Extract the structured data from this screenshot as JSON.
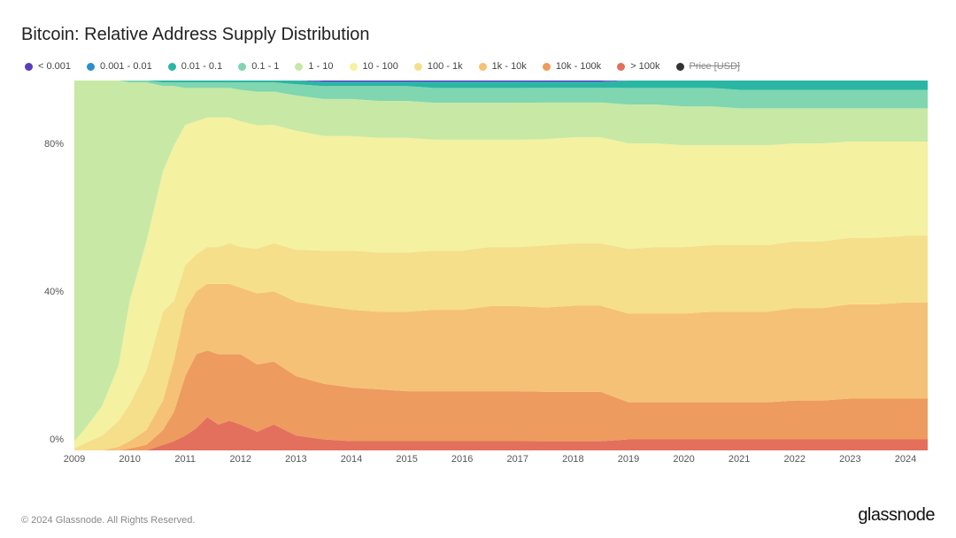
{
  "title": "Bitcoin: Relative Address Supply Distribution",
  "copyright": "© 2024 Glassnode. All Rights Reserved.",
  "brand": "glassnode",
  "legend": [
    {
      "label": "< 0.001",
      "color": "#5b3db8"
    },
    {
      "label": "0.001 - 0.01",
      "color": "#2f8fc9"
    },
    {
      "label": "0.01 - 0.1",
      "color": "#2bb6a3"
    },
    {
      "label": "0.1 - 1",
      "color": "#7fd6b0"
    },
    {
      "label": "1 - 10",
      "color": "#c7e9a5"
    },
    {
      "label": "10 - 100",
      "color": "#f4f1a1"
    },
    {
      "label": "100 - 1k",
      "color": "#f5df8a"
    },
    {
      "label": "1k - 10k",
      "color": "#f5c176"
    },
    {
      "label": "10k - 100k",
      "color": "#ee9b5f"
    },
    {
      "label": "> 100k",
      "color": "#e3705d"
    },
    {
      "label": "Price [USD]",
      "color": "#333333",
      "disabled": true
    }
  ],
  "chart": {
    "type": "stacked-area",
    "ylim": [
      0,
      100
    ],
    "yticks": [
      0,
      40,
      80
    ],
    "ytick_format": "%",
    "background_color": "#ffffff",
    "title_fontsize": 20,
    "label_fontsize": 11,
    "plot_aspect": "1012x418",
    "x_years": [
      2009,
      2010,
      2011,
      2012,
      2013,
      2014,
      2015,
      2016,
      2017,
      2018,
      2019,
      2020,
      2021,
      2022,
      2023,
      2024
    ],
    "x_range": [
      2009.0,
      2024.4
    ],
    "series_order_bottom_to_top": [
      "gt100k",
      "10k_100k",
      "1k_10k",
      "100_1k",
      "10_100",
      "1_10",
      "0.1_1",
      "0.01_0.1",
      "0.001_0.01",
      "lt0.001"
    ],
    "series_colors": {
      "gt100k": "#e3705d",
      "10k_100k": "#ee9b5f",
      "1k_10k": "#f5c176",
      "100_1k": "#f5df8a",
      "10_100": "#f4f1a1",
      "1_10": "#c7e9a5",
      "0.1_1": "#7fd6b0",
      "0.01_0.1": "#2bb6a3",
      "0.001_0.01": "#2f8fc9",
      "lt0.001": "#5b3db8"
    },
    "samples_x": [
      2009.0,
      2009.2,
      2009.5,
      2009.8,
      2010.0,
      2010.3,
      2010.6,
      2010.8,
      2011.0,
      2011.2,
      2011.4,
      2011.6,
      2011.8,
      2012.0,
      2012.3,
      2012.6,
      2013.0,
      2013.5,
      2014.0,
      2014.5,
      2015.0,
      2015.5,
      2016.0,
      2016.5,
      2017.0,
      2017.5,
      2018.0,
      2018.5,
      2019.0,
      2019.5,
      2020.0,
      2020.5,
      2021.0,
      2021.5,
      2022.0,
      2022.5,
      2023.0,
      2023.5,
      2024.0,
      2024.4
    ],
    "stacked_values": {
      "gt100k": [
        0.0,
        0.0,
        0.0,
        0.0,
        0.0,
        0.0,
        1.5,
        2.5,
        4.0,
        6.0,
        9.0,
        7.0,
        8.0,
        7.0,
        5.0,
        7.0,
        4.0,
        3.0,
        2.5,
        2.5,
        2.5,
        2.5,
        2.5,
        2.5,
        2.5,
        2.5,
        2.5,
        2.5,
        3.0,
        3.0,
        3.0,
        3.0,
        3.0,
        3.0,
        3.0,
        3.0,
        3.0,
        3.0,
        3.0,
        3.0
      ],
      "10k_100k": [
        0.0,
        0.0,
        0.0,
        0.0,
        0.5,
        1.5,
        4.0,
        8.0,
        16.0,
        20.0,
        18.0,
        19.0,
        18.0,
        19.0,
        18.0,
        17.0,
        16.0,
        15.0,
        14.5,
        14.0,
        13.5,
        13.5,
        13.5,
        13.5,
        13.5,
        13.5,
        13.5,
        13.5,
        10.0,
        10.0,
        10.0,
        10.0,
        10.0,
        10.0,
        10.5,
        10.5,
        11.0,
        11.0,
        11.0,
        11.0
      ],
      "1k_10k": [
        0.0,
        0.0,
        0.0,
        1.0,
        2.0,
        4.0,
        8.0,
        14.0,
        18.0,
        17.0,
        18.0,
        19.0,
        19.0,
        18.0,
        19.0,
        19.0,
        20.0,
        21.0,
        21.0,
        21.0,
        21.5,
        22.0,
        22.0,
        23.0,
        23.0,
        23.0,
        23.5,
        23.5,
        24.0,
        24.0,
        24.0,
        24.5,
        24.5,
        24.5,
        25.0,
        25.0,
        25.5,
        25.5,
        26.0,
        26.0
      ],
      "100_1k": [
        0.5,
        2.0,
        4.0,
        7.0,
        10.0,
        16.0,
        24.0,
        16.0,
        12.0,
        10.0,
        10.0,
        10.0,
        11.0,
        11.0,
        12.0,
        13.0,
        14.0,
        15.0,
        16.0,
        16.0,
        16.0,
        16.0,
        16.0,
        16.0,
        16.0,
        17.0,
        17.0,
        17.0,
        17.5,
        18.0,
        18.0,
        18.0,
        18.0,
        18.0,
        18.0,
        18.0,
        18.0,
        18.0,
        18.0,
        18.0
      ],
      "10_100": [
        2.0,
        4.0,
        8.0,
        15.0,
        28.0,
        35.0,
        38.0,
        42.0,
        38.0,
        36.0,
        35.0,
        35.0,
        34.0,
        34.0,
        33.0,
        32.0,
        32.0,
        31.0,
        31.0,
        31.0,
        31.0,
        30.0,
        30.0,
        29.0,
        29.0,
        29.0,
        29.0,
        29.0,
        28.5,
        28.0,
        27.5,
        27.0,
        27.0,
        27.0,
        26.5,
        26.5,
        26.0,
        26.0,
        25.5,
        25.5
      ],
      "1_10": [
        97.5,
        94.0,
        88.0,
        77.0,
        59.0,
        43.0,
        23.0,
        16.0,
        10.0,
        9.0,
        8.0,
        8.0,
        8.0,
        8.5,
        9.0,
        9.0,
        9.5,
        10.0,
        10.0,
        10.0,
        10.0,
        10.0,
        10.0,
        10.0,
        10.0,
        10.0,
        9.5,
        9.5,
        10.5,
        10.5,
        10.5,
        10.5,
        10.0,
        10.0,
        9.5,
        9.5,
        9.0,
        9.0,
        9.0,
        9.0
      ],
      "0.1_1": [
        0.0,
        0.0,
        0.0,
        0.0,
        0.5,
        0.5,
        1.0,
        1.0,
        1.5,
        1.5,
        1.5,
        1.5,
        1.5,
        2.0,
        2.5,
        2.5,
        3.0,
        3.5,
        3.5,
        4.0,
        4.0,
        4.0,
        4.0,
        4.0,
        4.0,
        4.0,
        4.0,
        4.0,
        4.5,
        4.5,
        5.0,
        5.0,
        5.0,
        5.0,
        5.0,
        5.0,
        5.0,
        5.0,
        5.0,
        5.0
      ],
      "0.01_0.1": [
        0.0,
        0.0,
        0.0,
        0.0,
        0.0,
        0.0,
        0.5,
        0.5,
        0.5,
        0.5,
        0.5,
        0.5,
        0.5,
        0.5,
        0.5,
        0.5,
        1.0,
        1.0,
        1.0,
        1.0,
        1.0,
        1.5,
        1.5,
        1.5,
        1.5,
        1.5,
        1.5,
        1.5,
        2.0,
        2.0,
        2.0,
        2.0,
        2.5,
        2.5,
        2.5,
        2.5,
        2.5,
        2.5,
        2.5,
        2.5
      ],
      "0.001_0.01": [
        0.0,
        0.0,
        0.0,
        0.0,
        0.0,
        0.0,
        0.0,
        0.0,
        0.0,
        0.0,
        0.0,
        0.0,
        0.0,
        0.0,
        0.0,
        0.0,
        0.0,
        0.25,
        0.25,
        0.25,
        0.25,
        0.25,
        0.25,
        0.25,
        0.25,
        0.25,
        0.25,
        0.25,
        0.0,
        0.0,
        0.0,
        0.0,
        0.0,
        0.0,
        0.0,
        0.0,
        0.0,
        0.0,
        0.0,
        0.0
      ],
      "lt0.001": [
        0.0,
        0.0,
        0.0,
        0.0,
        0.0,
        0.0,
        0.0,
        0.0,
        0.0,
        0.0,
        0.0,
        0.0,
        0.0,
        0.0,
        0.0,
        0.0,
        0.0,
        0.25,
        0.25,
        0.25,
        0.25,
        0.25,
        0.25,
        0.25,
        0.25,
        0.25,
        0.25,
        0.25,
        0.0,
        0.0,
        0.0,
        0.0,
        0.0,
        0.0,
        0.0,
        0.0,
        0.0,
        0.0,
        0.0,
        0.0
      ]
    }
  }
}
